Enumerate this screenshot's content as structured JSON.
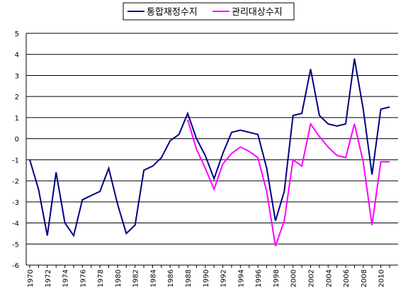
{
  "chart_data": {
    "type": "line",
    "title": "",
    "xlabel": "",
    "ylabel": "",
    "ylim": [
      -6,
      5
    ],
    "xlim": [
      1970,
      2011
    ],
    "grid": "horizontal",
    "legend": "top-center",
    "y_ticks": [
      "5",
      "4",
      "3",
      "2",
      "1",
      "0",
      "-1",
      "-2",
      "-3",
      "-4",
      "-5",
      "-6"
    ],
    "x_tick_labels": [
      "1970",
      "1972",
      "1974",
      "1976",
      "1978",
      "1980",
      "1982",
      "1984",
      "1986",
      "1988",
      "1990",
      "1992",
      "1994",
      "1996",
      "1998",
      "2000",
      "2002",
      "2004",
      "2006",
      "2008",
      "2010"
    ],
    "series": [
      {
        "name": "통합재정수지",
        "color": "#000080",
        "x": [
          1970,
          1971,
          1972,
          1973,
          1974,
          1975,
          1976,
          1977,
          1978,
          1979,
          1980,
          1981,
          1982,
          1983,
          1984,
          1985,
          1986,
          1987,
          1988,
          1989,
          1990,
          1991,
          1992,
          1993,
          1994,
          1995,
          1996,
          1997,
          1998,
          1999,
          2000,
          2001,
          2002,
          2003,
          2004,
          2005,
          2006,
          2007,
          2008,
          2009,
          2010,
          2011
        ],
        "values": [
          -1.0,
          -2.4,
          -4.6,
          -1.6,
          -4.0,
          -4.6,
          -2.9,
          -2.7,
          -2.5,
          -1.4,
          -3.1,
          -4.5,
          -4.1,
          -1.5,
          -1.3,
          -0.9,
          -0.1,
          0.2,
          1.2,
          0.0,
          -0.8,
          -1.9,
          -0.7,
          0.3,
          0.4,
          0.3,
          0.2,
          -1.4,
          -3.9,
          -2.5,
          1.1,
          1.2,
          3.3,
          1.1,
          0.7,
          0.6,
          0.7,
          3.8,
          1.4,
          -1.7,
          1.4,
          1.5
        ]
      },
      {
        "name": "관리대상수지",
        "color": "#FF00FF",
        "x": [
          1988,
          1989,
          1990,
          1991,
          1992,
          1993,
          1994,
          1995,
          1996,
          1997,
          1998,
          1999,
          2000,
          2001,
          2002,
          2003,
          2004,
          2005,
          2006,
          2007,
          2008,
          2009,
          2010,
          2011
        ],
        "values": [
          0.9,
          -0.5,
          -1.4,
          -2.4,
          -1.2,
          -0.7,
          -0.4,
          -0.6,
          -0.9,
          -2.5,
          -5.1,
          -3.9,
          -1.0,
          -1.3,
          0.7,
          0.1,
          -0.4,
          -0.8,
          -0.9,
          0.7,
          -1.1,
          -4.1,
          -1.1,
          -1.1
        ]
      }
    ]
  }
}
